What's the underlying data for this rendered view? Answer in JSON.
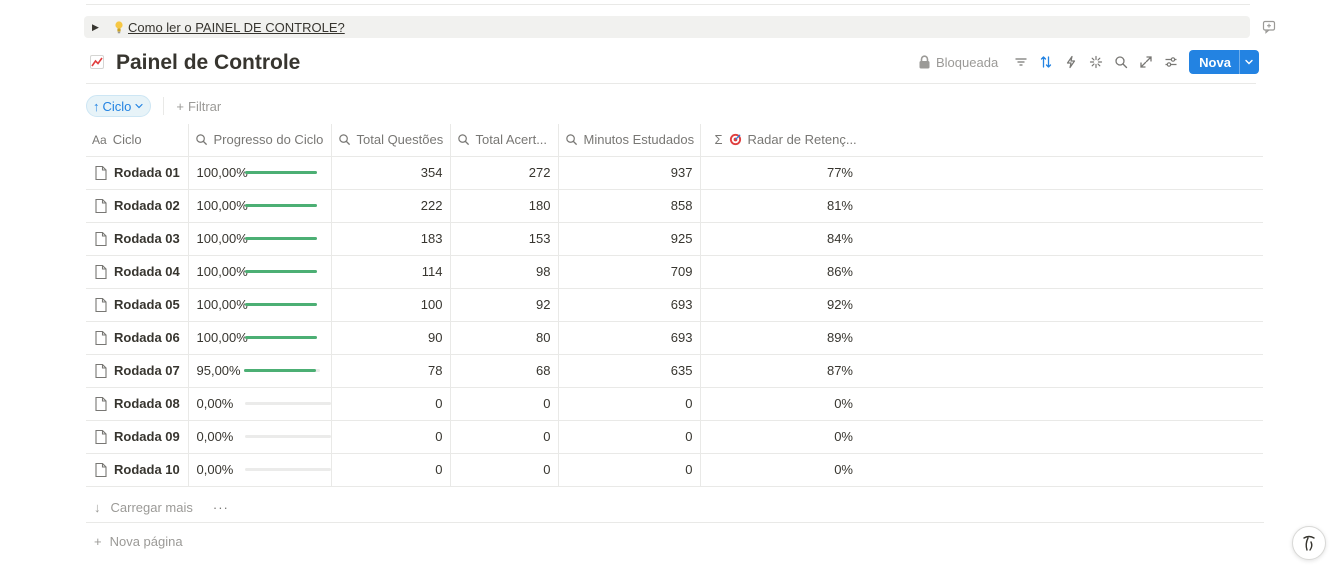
{
  "toggle": {
    "text": "Como ler o PAINEL DE CONTROLE?",
    "icon": "lightbulb-icon"
  },
  "page": {
    "title": "Painel de Controle",
    "icon": "chart-increasing-icon"
  },
  "toolbar": {
    "lock_label": "Bloqueada",
    "icons": [
      "filter-icon",
      "sort-icon",
      "lightning-icon",
      "sparkle-icon",
      "search-icon",
      "expand-icon",
      "settings-icon"
    ],
    "new_label": "Nova"
  },
  "filters": {
    "sort_chip": "Ciclo",
    "add_filter": "Filtrar"
  },
  "colors": {
    "accent": "#2383e2",
    "progress": "#4caf74"
  },
  "table": {
    "headers": {
      "name": "Ciclo",
      "progress": "Progresso do Ciclo",
      "questions": "Total Questões",
      "correct": "Total Acert...",
      "minutes": "Minutos Estudados",
      "radar": "Radar de Retenç..."
    },
    "rows": [
      {
        "name": "Rodada 01",
        "progress": "100,00%",
        "progress_value": 1.0,
        "questions": "354",
        "correct": "272",
        "minutes": "937",
        "radar": "77%"
      },
      {
        "name": "Rodada 02",
        "progress": "100,00%",
        "progress_value": 1.0,
        "questions": "222",
        "correct": "180",
        "minutes": "858",
        "radar": "81%"
      },
      {
        "name": "Rodada 03",
        "progress": "100,00%",
        "progress_value": 1.0,
        "questions": "183",
        "correct": "153",
        "minutes": "925",
        "radar": "84%"
      },
      {
        "name": "Rodada 04",
        "progress": "100,00%",
        "progress_value": 1.0,
        "questions": "114",
        "correct": "98",
        "minutes": "709",
        "radar": "86%"
      },
      {
        "name": "Rodada 05",
        "progress": "100,00%",
        "progress_value": 1.0,
        "questions": "100",
        "correct": "92",
        "minutes": "693",
        "radar": "92%"
      },
      {
        "name": "Rodada 06",
        "progress": "100,00%",
        "progress_value": 1.0,
        "questions": "90",
        "correct": "80",
        "minutes": "693",
        "radar": "89%"
      },
      {
        "name": "Rodada 07",
        "progress": "95,00%",
        "progress_value": 0.95,
        "questions": "78",
        "correct": "68",
        "minutes": "635",
        "radar": "87%"
      },
      {
        "name": "Rodada 08",
        "progress": "0,00%",
        "progress_value": 0.0,
        "questions": "0",
        "correct": "0",
        "minutes": "0",
        "radar": "0%"
      },
      {
        "name": "Rodada 09",
        "progress": "0,00%",
        "progress_value": 0.0,
        "questions": "0",
        "correct": "0",
        "minutes": "0",
        "radar": "0%"
      },
      {
        "name": "Rodada 10",
        "progress": "0,00%",
        "progress_value": 0.0,
        "questions": "0",
        "correct": "0",
        "minutes": "0",
        "radar": "0%"
      }
    ]
  },
  "footer": {
    "load_more": "Carregar mais",
    "more": "···",
    "new_page": "Nova página"
  }
}
